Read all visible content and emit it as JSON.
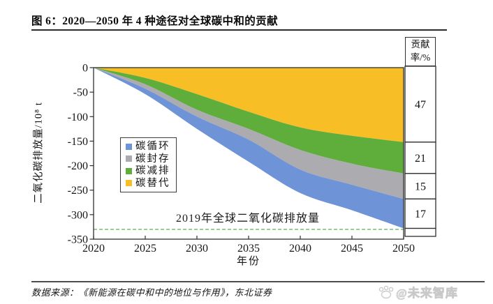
{
  "title": "图 6：2020—2050 年 4 种途径对全球碳中和的贡献",
  "source": "数据来源：《新能源在碳中和中的地位与作用》，东北证券",
  "watermark": "@未来智库",
  "chart_data": {
    "type": "area",
    "stacked": true,
    "direction": "negative",
    "title": "2020—2050 年 4 种途径对全球碳中和的贡献",
    "xlabel": "年份",
    "ylabel": "二氧化碳排放量/10⁸ t",
    "xlim": [
      2020,
      2050
    ],
    "ylim": [
      -350,
      0
    ],
    "x_ticks": [
      2020,
      2025,
      2030,
      2035,
      2040,
      2045,
      2050
    ],
    "y_ticks": [
      0,
      -50,
      -100,
      -150,
      -200,
      -250,
      -300,
      -350
    ],
    "x": [
      2020,
      2025,
      2030,
      2035,
      2040,
      2045,
      2050
    ],
    "series": [
      {
        "name": "碳替代",
        "key": "carbon-substitution",
        "color": "#F7BE25",
        "values": [
          0,
          21,
          54,
          90,
          122,
          139,
          152
        ],
        "contribution_pct": 47
      },
      {
        "name": "碳减排",
        "key": "carbon-emission-reduction",
        "color": "#5FAE3C",
        "values": [
          0,
          13,
          32,
          35,
          46,
          57,
          64
        ],
        "contribution_pct": 21
      },
      {
        "name": "碳封存",
        "key": "carbon-sequestration",
        "color": "#ABABB0",
        "values": [
          0,
          9,
          14,
          22,
          40,
          43,
          52
        ],
        "contribution_pct": 15
      },
      {
        "name": "碳循环",
        "key": "carbon-cycle",
        "color": "#6E93D6",
        "values": [
          0,
          11,
          25,
          45,
          48,
          52,
          60
        ],
        "contribution_pct": 17
      }
    ],
    "legend_order": [
      "碳循环",
      "碳封存",
      "碳减排",
      "碳替代"
    ],
    "legend_position": "left-middle",
    "grid": false,
    "reference_line": {
      "value": -330,
      "label": "2019年全球二氧化碳排放量",
      "color": "#7CC57C",
      "style": "dashed"
    },
    "contribution_column": {
      "header": "贡献率/%",
      "values": [
        47,
        21,
        15,
        17
      ]
    }
  }
}
